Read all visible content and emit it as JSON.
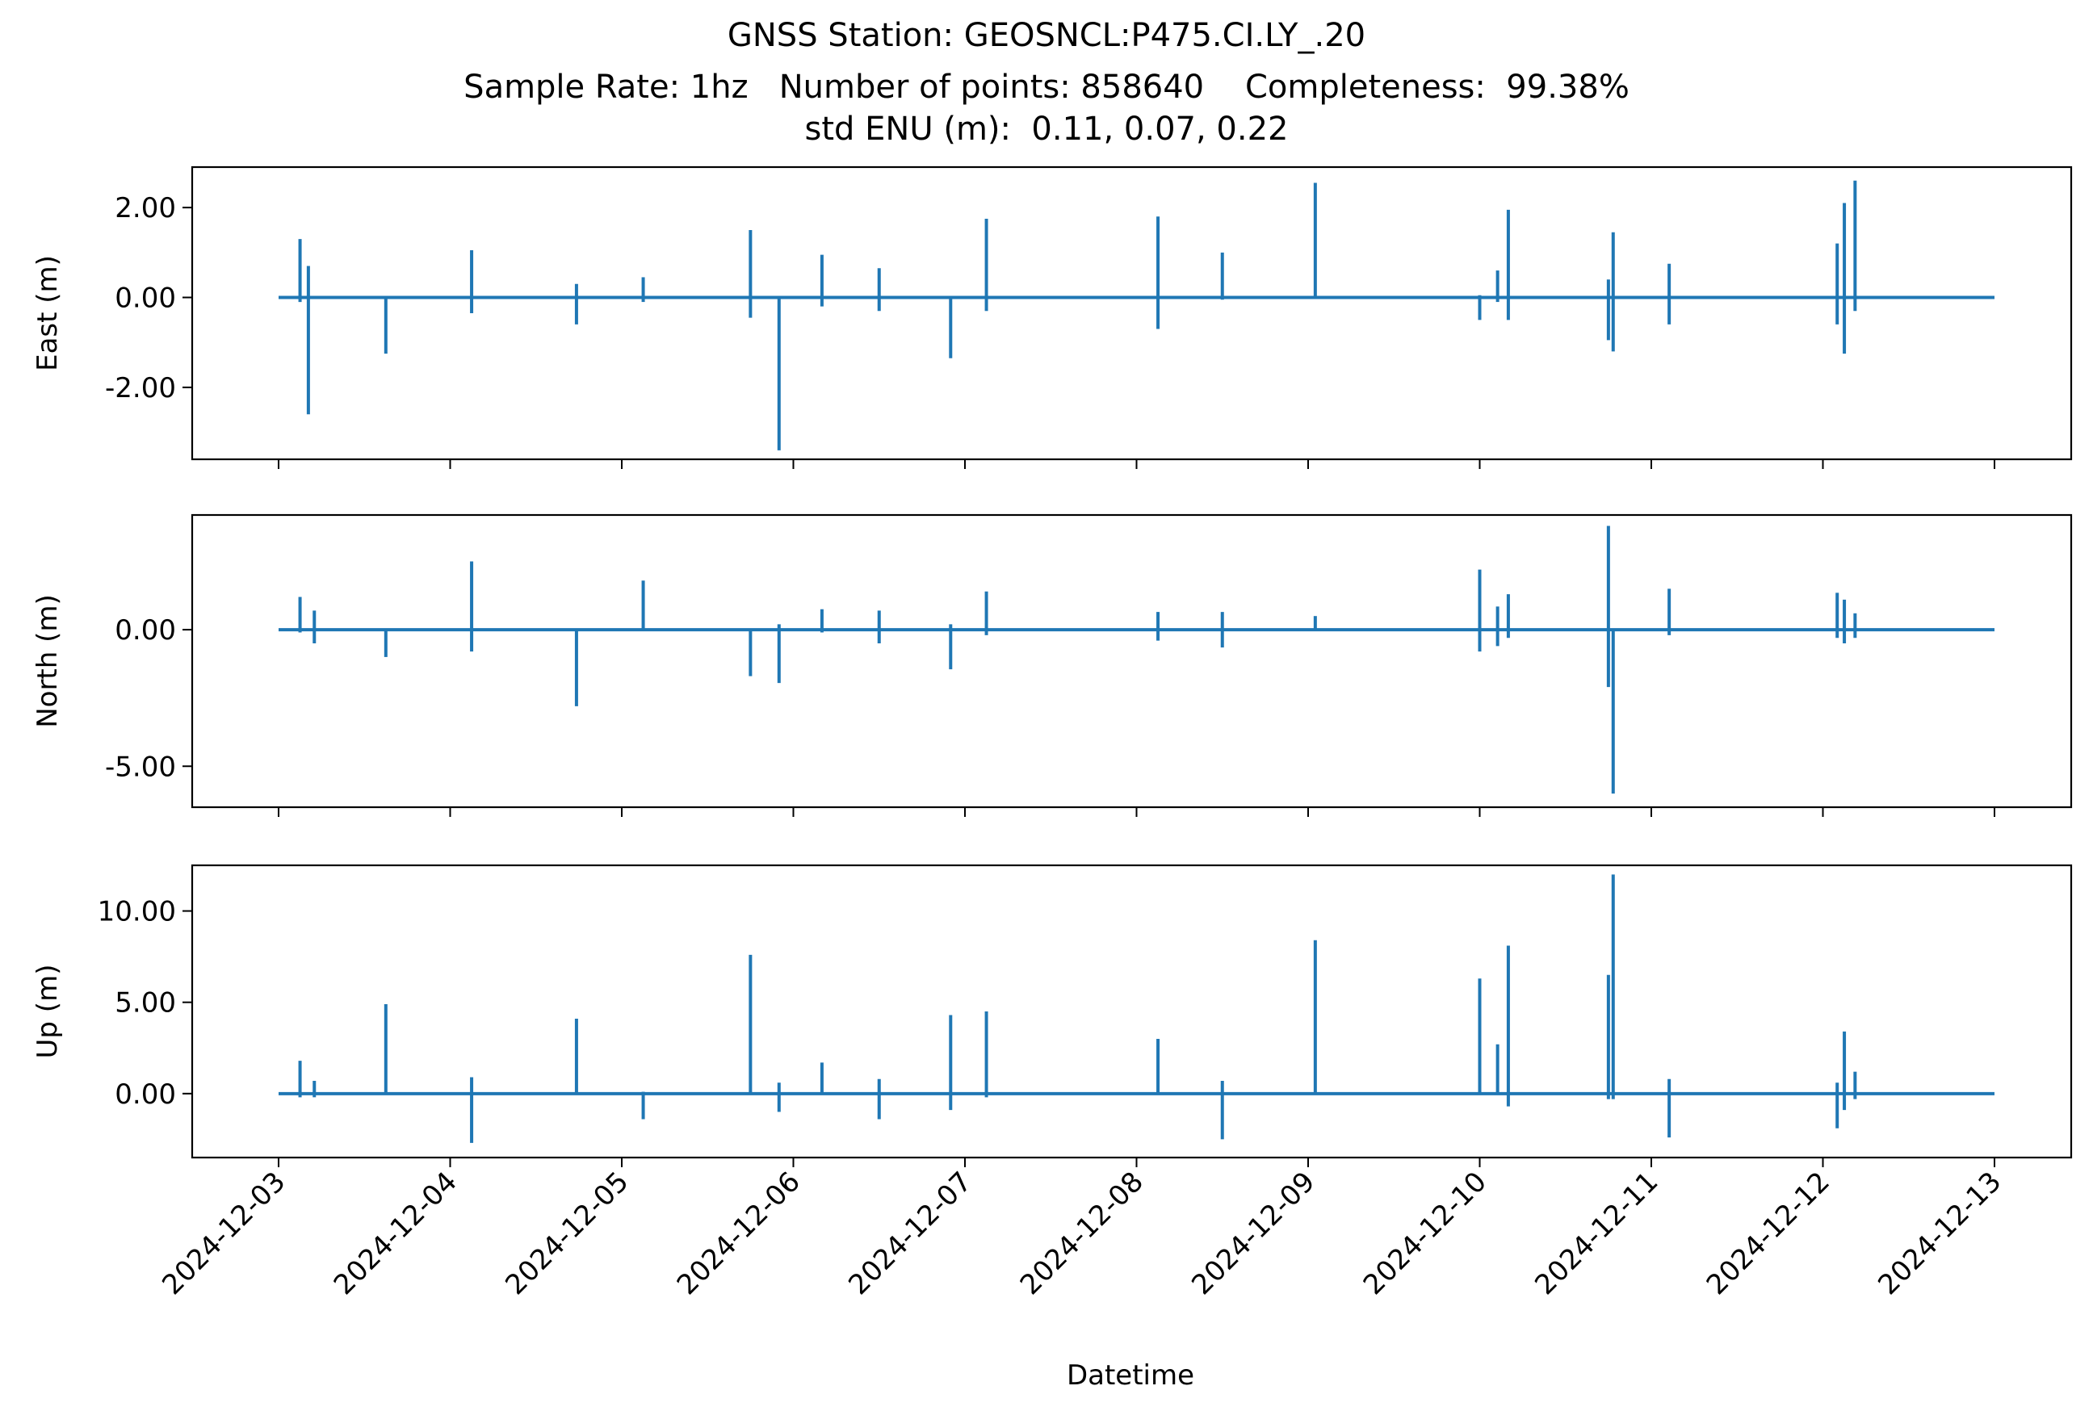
{
  "chart_data": {
    "type": "line",
    "title": "GNSS Station: GEOSNCL:P475.CI.LY_.20",
    "subtitle": "Sample Rate: 1hz   Number of points: 858640    Completeness:  99.38%",
    "subtitle2": "std ENU (m):  0.11, 0.07, 0.22",
    "xlabel": "Datetime",
    "x_range": [
      "2024-12-03",
      "2024-12-13"
    ],
    "x_ticks": [
      "2024-12-03",
      "2024-12-04",
      "2024-12-05",
      "2024-12-06",
      "2024-12-07",
      "2024-12-08",
      "2024-12-09",
      "2024-12-10",
      "2024-12-11",
      "2024-12-12",
      "2024-12-13"
    ],
    "color": "#1f77b4",
    "grid": false,
    "panels": [
      {
        "ylabel": "East (m)",
        "ylim": [
          -3.6,
          2.9
        ],
        "yticks": [
          2.0,
          0.0,
          -2.0
        ],
        "ytick_labels": [
          "2.00",
          "0.00",
          "-2.00"
        ],
        "spikes": [
          {
            "x": "2024-12-03 03:00",
            "hi": 1.3,
            "lo": -0.1
          },
          {
            "x": "2024-12-03 04:10",
            "hi": 0.7,
            "lo": -2.6
          },
          {
            "x": "2024-12-03 15:00",
            "hi": 0.0,
            "lo": -1.25
          },
          {
            "x": "2024-12-04 03:00",
            "hi": 1.05,
            "lo": -0.35
          },
          {
            "x": "2024-12-04 17:40",
            "hi": 0.3,
            "lo": -0.6
          },
          {
            "x": "2024-12-05 03:00",
            "hi": 0.45,
            "lo": -0.1
          },
          {
            "x": "2024-12-05 18:00",
            "hi": 1.5,
            "lo": -0.45
          },
          {
            "x": "2024-12-05 22:00",
            "hi": 0.0,
            "lo": -3.4
          },
          {
            "x": "2024-12-06 04:00",
            "hi": 0.95,
            "lo": -0.2
          },
          {
            "x": "2024-12-06 12:00",
            "hi": 0.65,
            "lo": -0.3
          },
          {
            "x": "2024-12-06 22:00",
            "hi": 0.0,
            "lo": -1.35
          },
          {
            "x": "2024-12-07 03:00",
            "hi": 1.75,
            "lo": -0.3
          },
          {
            "x": "2024-12-08 03:00",
            "hi": 1.8,
            "lo": -0.7
          },
          {
            "x": "2024-12-08 12:00",
            "hi": 1.0,
            "lo": -0.05
          },
          {
            "x": "2024-12-09 01:00",
            "hi": 2.55,
            "lo": 0.0
          },
          {
            "x": "2024-12-10 00:00",
            "hi": 0.05,
            "lo": -0.5
          },
          {
            "x": "2024-12-10 02:30",
            "hi": 0.6,
            "lo": -0.1
          },
          {
            "x": "2024-12-10 04:00",
            "hi": 1.95,
            "lo": -0.5
          },
          {
            "x": "2024-12-10 18:00",
            "hi": 0.4,
            "lo": -0.95
          },
          {
            "x": "2024-12-10 18:40",
            "hi": 1.45,
            "lo": -1.2
          },
          {
            "x": "2024-12-11 02:30",
            "hi": 0.75,
            "lo": -0.6
          },
          {
            "x": "2024-12-12 02:00",
            "hi": 1.2,
            "lo": -0.6
          },
          {
            "x": "2024-12-12 03:00",
            "hi": 2.1,
            "lo": -1.25
          },
          {
            "x": "2024-12-12 04:30",
            "hi": 2.6,
            "lo": -0.3
          }
        ]
      },
      {
        "ylabel": "North (m)",
        "ylim": [
          -6.5,
          4.2
        ],
        "yticks": [
          0.0,
          -5.0
        ],
        "ytick_labels": [
          "0.00",
          "-5.00"
        ],
        "spikes": [
          {
            "x": "2024-12-03 03:00",
            "hi": 1.2,
            "lo": -0.1
          },
          {
            "x": "2024-12-03 05:00",
            "hi": 0.7,
            "lo": -0.5
          },
          {
            "x": "2024-12-03 15:00",
            "hi": 0.0,
            "lo": -1.0
          },
          {
            "x": "2024-12-04 03:00",
            "hi": 2.5,
            "lo": -0.8
          },
          {
            "x": "2024-12-04 17:40",
            "hi": 0.0,
            "lo": -2.8
          },
          {
            "x": "2024-12-05 03:00",
            "hi": 1.8,
            "lo": 0.0
          },
          {
            "x": "2024-12-05 18:00",
            "hi": 0.0,
            "lo": -1.7
          },
          {
            "x": "2024-12-05 22:00",
            "hi": 0.2,
            "lo": -1.95
          },
          {
            "x": "2024-12-06 04:00",
            "hi": 0.75,
            "lo": -0.1
          },
          {
            "x": "2024-12-06 12:00",
            "hi": 0.7,
            "lo": -0.5
          },
          {
            "x": "2024-12-06 22:00",
            "hi": 0.2,
            "lo": -1.45
          },
          {
            "x": "2024-12-07 03:00",
            "hi": 1.4,
            "lo": -0.2
          },
          {
            "x": "2024-12-08 03:00",
            "hi": 0.65,
            "lo": -0.4
          },
          {
            "x": "2024-12-08 12:00",
            "hi": 0.65,
            "lo": -0.65
          },
          {
            "x": "2024-12-09 01:00",
            "hi": 0.5,
            "lo": 0.0
          },
          {
            "x": "2024-12-10 00:00",
            "hi": 2.2,
            "lo": -0.8
          },
          {
            "x": "2024-12-10 02:30",
            "hi": 0.85,
            "lo": -0.6
          },
          {
            "x": "2024-12-10 04:00",
            "hi": 1.3,
            "lo": -0.3
          },
          {
            "x": "2024-12-10 18:00",
            "hi": 3.8,
            "lo": -2.1
          },
          {
            "x": "2024-12-10 18:40",
            "hi": 0.0,
            "lo": -6.0
          },
          {
            "x": "2024-12-11 02:30",
            "hi": 1.5,
            "lo": -0.2
          },
          {
            "x": "2024-12-12 02:00",
            "hi": 1.35,
            "lo": -0.3
          },
          {
            "x": "2024-12-12 03:00",
            "hi": 1.1,
            "lo": -0.5
          },
          {
            "x": "2024-12-12 04:30",
            "hi": 0.6,
            "lo": -0.3
          }
        ]
      },
      {
        "ylabel": "Up (m)",
        "ylim": [
          -3.5,
          12.5
        ],
        "yticks": [
          10.0,
          5.0,
          0.0
        ],
        "ytick_labels": [
          "10.00",
          "5.00",
          "0.00"
        ],
        "spikes": [
          {
            "x": "2024-12-03 03:00",
            "hi": 1.8,
            "lo": -0.2
          },
          {
            "x": "2024-12-03 05:00",
            "hi": 0.7,
            "lo": -0.2
          },
          {
            "x": "2024-12-03 15:00",
            "hi": 4.9,
            "lo": 0.0
          },
          {
            "x": "2024-12-04 03:00",
            "hi": 0.9,
            "lo": -2.7
          },
          {
            "x": "2024-12-04 17:40",
            "hi": 4.1,
            "lo": 0.0
          },
          {
            "x": "2024-12-05 03:00",
            "hi": 0.1,
            "lo": -1.4
          },
          {
            "x": "2024-12-05 18:00",
            "hi": 7.6,
            "lo": 0.0
          },
          {
            "x": "2024-12-05 22:00",
            "hi": 0.6,
            "lo": -1.0
          },
          {
            "x": "2024-12-06 04:00",
            "hi": 1.7,
            "lo": 0.0
          },
          {
            "x": "2024-12-06 12:00",
            "hi": 0.8,
            "lo": -1.4
          },
          {
            "x": "2024-12-06 22:00",
            "hi": 4.3,
            "lo": -0.9
          },
          {
            "x": "2024-12-07 03:00",
            "hi": 4.5,
            "lo": -0.2
          },
          {
            "x": "2024-12-08 03:00",
            "hi": 3.0,
            "lo": 0.0
          },
          {
            "x": "2024-12-08 12:00",
            "hi": 0.7,
            "lo": -2.5
          },
          {
            "x": "2024-12-09 01:00",
            "hi": 8.4,
            "lo": 0.0
          },
          {
            "x": "2024-12-10 00:00",
            "hi": 6.3,
            "lo": 0.0
          },
          {
            "x": "2024-12-10 02:30",
            "hi": 2.7,
            "lo": 0.0
          },
          {
            "x": "2024-12-10 04:00",
            "hi": 8.1,
            "lo": -0.7
          },
          {
            "x": "2024-12-10 18:00",
            "hi": 6.5,
            "lo": -0.3
          },
          {
            "x": "2024-12-10 18:40",
            "hi": 12.0,
            "lo": -0.3
          },
          {
            "x": "2024-12-11 02:30",
            "hi": 0.8,
            "lo": -2.4
          },
          {
            "x": "2024-12-12 02:00",
            "hi": 0.6,
            "lo": -1.9
          },
          {
            "x": "2024-12-12 03:00",
            "hi": 3.4,
            "lo": -0.9
          },
          {
            "x": "2024-12-12 04:30",
            "hi": 1.2,
            "lo": -0.3
          }
        ]
      }
    ]
  }
}
